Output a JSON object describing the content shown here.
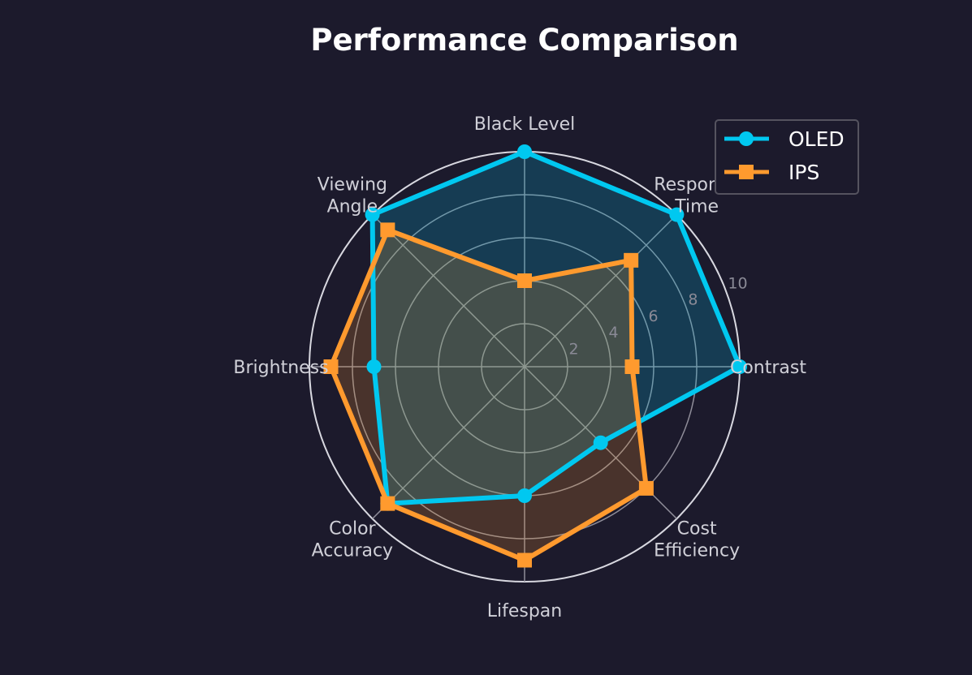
{
  "chart_data": {
    "type": "radar",
    "title": "Performance Comparison",
    "categories": [
      [
        "Contrast"
      ],
      [
        "Response",
        "Time"
      ],
      [
        "Black Level"
      ],
      [
        "Viewing",
        "Angle"
      ],
      [
        "Brightness"
      ],
      [
        "Color",
        "Accuracy"
      ],
      [
        "Lifespan"
      ],
      [
        "Cost",
        "Efficiency"
      ]
    ],
    "category_names": [
      "Contrast",
      "Response Time",
      "Black Level",
      "Viewing Angle",
      "Brightness",
      "Color Accuracy",
      "Lifespan",
      "Cost Efficiency"
    ],
    "rlim": [
      0,
      10
    ],
    "rticks": [
      2,
      4,
      6,
      8,
      10
    ],
    "series": [
      {
        "name": "OLED",
        "marker": "circle",
        "color": "#00c8f0",
        "values": [
          10,
          10,
          10,
          10,
          7,
          9,
          6,
          5
        ]
      },
      {
        "name": "IPS",
        "marker": "square",
        "color": "#ff9a2e",
        "values": [
          5,
          7,
          4,
          9,
          9,
          9,
          9,
          8
        ]
      }
    ],
    "legend": "top-right",
    "grid": true
  }
}
